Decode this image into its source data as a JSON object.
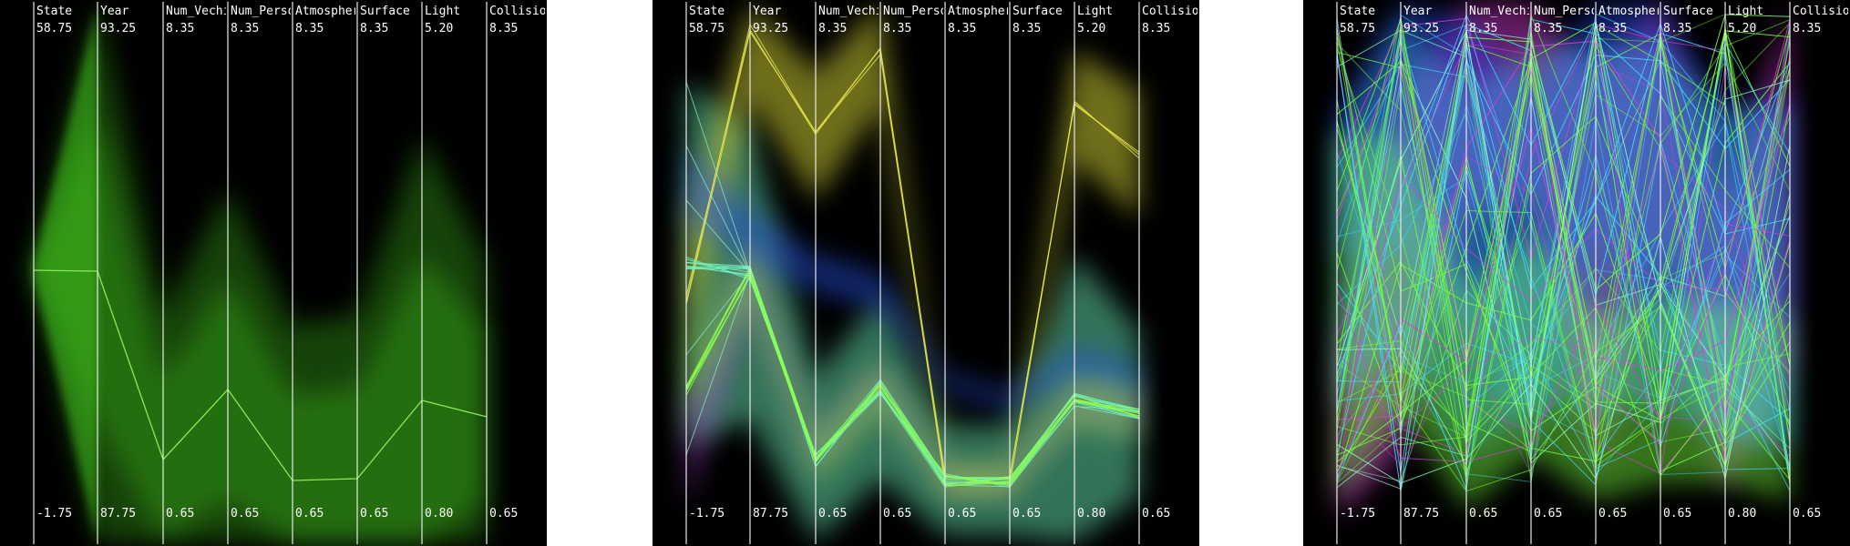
{
  "chart_data": [
    {
      "type": "parallel-coordinates",
      "axes": [
        {
          "name": "State",
          "max": "58.75",
          "min": "-1.75"
        },
        {
          "name": "Year",
          "max": "93.25",
          "min": "87.75"
        },
        {
          "name": "Num_Vechi",
          "max": "8.35",
          "min": "0.65"
        },
        {
          "name": "Num_Perso",
          "max": "8.35",
          "min": "0.65"
        },
        {
          "name": "Atmospher",
          "max": "8.35",
          "min": "0.65"
        },
        {
          "name": "Surface",
          "max": "8.35",
          "min": "0.65"
        },
        {
          "name": "Light",
          "max": "5.20",
          "min": "0.80"
        },
        {
          "name": "Collision",
          "max": "8.35",
          "min": "0.65"
        }
      ],
      "colors": {
        "background": "#000000",
        "cluster": "#3fbf1f"
      }
    },
    {
      "type": "parallel-coordinates",
      "axes": [
        {
          "name": "State",
          "max": "58.75",
          "min": "-1.75"
        },
        {
          "name": "Year",
          "max": "93.25",
          "min": "87.75"
        },
        {
          "name": "Num_Vechi",
          "max": "8.35",
          "min": "0.65"
        },
        {
          "name": "Num_Perso",
          "max": "8.35",
          "min": "0.65"
        },
        {
          "name": "Atmospher",
          "max": "8.35",
          "min": "0.65"
        },
        {
          "name": "Surface",
          "max": "8.35",
          "min": "0.65"
        },
        {
          "name": "Light",
          "max": "5.20",
          "min": "0.80"
        },
        {
          "name": "Collision",
          "max": "8.35",
          "min": "0.65"
        }
      ],
      "colors": {
        "background": "#000000",
        "clusters": [
          "#c8c832",
          "#5fd2a5",
          "#2850dc",
          "#b446dc",
          "#78dc3c"
        ]
      }
    },
    {
      "type": "parallel-coordinates",
      "axes": [
        {
          "name": "State",
          "max": "58.75",
          "min": "-1.75"
        },
        {
          "name": "Year",
          "max": "93.25",
          "min": "87.75"
        },
        {
          "name": "Num_Vechi",
          "max": "8.35",
          "min": "0.65"
        },
        {
          "name": "Num_Perso",
          "max": "8.35",
          "min": "0.65"
        },
        {
          "name": "Atmospher",
          "max": "8.35",
          "min": "0.65"
        },
        {
          "name": "Surface",
          "max": "8.35",
          "min": "0.65"
        },
        {
          "name": "Light",
          "max": "5.20",
          "min": "0.80"
        },
        {
          "name": "Collision",
          "max": "8.35",
          "min": "0.65"
        }
      ],
      "colors": {
        "background": "#000000",
        "clusters": [
          "#78ff3c",
          "#46dcff",
          "#dc3cdc",
          "#2846e6"
        ]
      }
    }
  ]
}
